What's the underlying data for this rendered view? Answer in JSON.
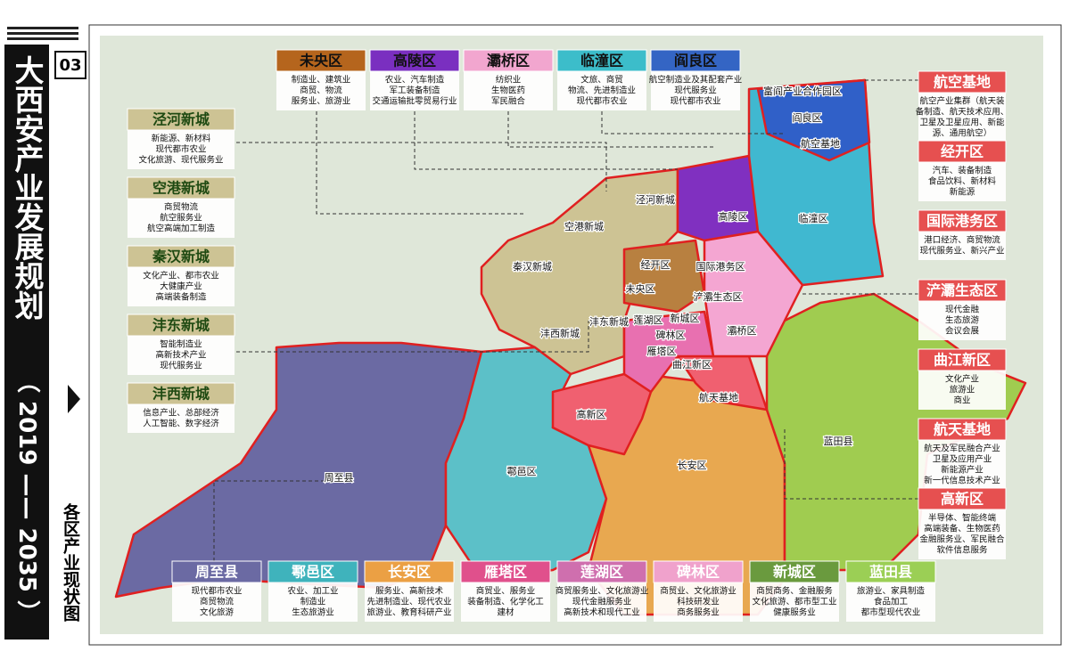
{
  "sidebar": {
    "page": "03",
    "title": "大西安产业发展规划",
    "years": "（ 2019 —— 2035 ）",
    "subtitle": "各区产业现状图"
  },
  "panels": {
    "top": [
      {
        "name": "未央区",
        "color": "#b5651d",
        "lines": [
          "制造业、建筑业",
          "商贸、物流",
          "服务业、旅游业"
        ]
      },
      {
        "name": "高陵区",
        "color": "#7a2fc0",
        "lines": [
          "农业、汽车制造",
          "军工装备制造",
          "交通运输批零贸易行业"
        ]
      },
      {
        "name": "灞桥区",
        "color": "#f2a6cf",
        "lines": [
          "纺织业",
          "生物医药",
          "军民融合"
        ]
      },
      {
        "name": "临潼区",
        "color": "#3cbdca",
        "lines": [
          "文旅、商贸",
          "物流、先进制造业",
          "现代都市农业"
        ]
      },
      {
        "name": "阎良区",
        "color": "#3465c4",
        "lines": [
          "航空制造业及其配套产业",
          "现代服务业",
          "现代都市农业"
        ]
      }
    ],
    "left": [
      {
        "name": "泾河新城",
        "color": "#cdc394",
        "lines": [
          "新能源、新材料",
          "现代都市农业",
          "文化旅游、现代服务业"
        ]
      },
      {
        "name": "空港新城",
        "color": "#cdc394",
        "lines": [
          "商贸物流",
          "航空服务业",
          "航空高端加工制造"
        ]
      },
      {
        "name": "秦汉新城",
        "color": "#cdc394",
        "lines": [
          "文化产业、都市农业",
          "大健康产业",
          "高端装备制造"
        ]
      },
      {
        "name": "沣东新城",
        "color": "#cdc394",
        "lines": [
          "智能制造业",
          "高新技术产业",
          "现代服务业"
        ]
      },
      {
        "name": "沣西新城",
        "color": "#cdc394",
        "lines": [
          "信息产业、总部经济",
          "人工智能、数字经济"
        ]
      }
    ],
    "right": [
      {
        "name": "航空基地",
        "color": "#e65050",
        "lines": [
          "航空产业集群（航天装",
          "备制造、航天技术应用、",
          "卫星及卫星应用、新能",
          "源、通用航空）"
        ]
      },
      {
        "name": "经开区",
        "color": "#e65050",
        "lines": [
          "汽车、装备制造",
          "食品饮料、新材料",
          "新能源"
        ]
      },
      {
        "name": "国际港务区",
        "color": "#e65050",
        "lines": [
          "港口经济、商贸物流",
          "现代服务业、新兴产业"
        ]
      },
      {
        "name": "浐灞生态区",
        "color": "#e65050",
        "lines": [
          "现代金融",
          "生态旅游",
          "会议会展"
        ]
      },
      {
        "name": "曲江新区",
        "color": "#e65050",
        "lines": [
          "文化产业",
          "旅游业",
          "商业"
        ]
      },
      {
        "name": "航天基地",
        "color": "#e65050",
        "lines": [
          "航天及军民融合产业",
          "卫星及应用产业",
          "新能源产业",
          "新一代信息技术产业"
        ]
      },
      {
        "name": "高新区",
        "color": "#e65050",
        "lines": [
          "半导体、智能终端",
          "高端装备、生物医药",
          "金融服务业、军民融合",
          "软件信息服务"
        ]
      }
    ],
    "bottom": [
      {
        "name": "周至县",
        "color": "#6b6aa3",
        "lines": [
          "现代都市农业",
          "商贸物流",
          "文化旅游"
        ]
      },
      {
        "name": "鄠邑区",
        "color": "#3fb3bc",
        "lines": [
          "农业、加工业",
          "制造业",
          "生态旅游业"
        ]
      },
      {
        "name": "长安区",
        "color": "#eba044",
        "lines": [
          "服务业、高新技术",
          "先进制造业、现代农业",
          "旅游业、教育科研产业"
        ]
      },
      {
        "name": "雁塔区",
        "color": "#e0508c",
        "lines": [
          "商贸业、服务业",
          "装备制造、化学化工",
          "建材"
        ]
      },
      {
        "name": "莲湖区",
        "color": "#cf6fae",
        "lines": [
          "商贸服务业、文化旅游业",
          "现代金融服务业",
          "高新技术和现代工业"
        ]
      },
      {
        "name": "碑林区",
        "color": "#f0a2cc",
        "lines": [
          "商贸业、文化旅游业",
          "科技研发业",
          "商务服务业"
        ]
      },
      {
        "name": "新城区",
        "color": "#6a9a3e",
        "lines": [
          "商贸商务、金融服务",
          "文化旅游、都市型工业",
          "健康服务业"
        ]
      },
      {
        "name": "蓝田县",
        "color": "#9bcf55",
        "lines": [
          "旅游业、家具制造",
          "食品加工",
          "都市型现代农业"
        ]
      }
    ]
  },
  "map_labels": [
    "阎良区",
    "航空基地",
    "富阎产业合作园区",
    "泾河新城",
    "高陵区",
    "临潼区",
    "空港新城",
    "秦汉新城",
    "经开区",
    "国际港务区",
    "未央区",
    "浐灞生态区",
    "沣东新城",
    "莲湖区",
    "新城区",
    "灞桥区",
    "沣西新城",
    "碑林区",
    "雁塔区",
    "曲江新区",
    "航天基地",
    "高新区",
    "长安区",
    "蓝田县",
    "鄠邑区",
    "周至县"
  ]
}
